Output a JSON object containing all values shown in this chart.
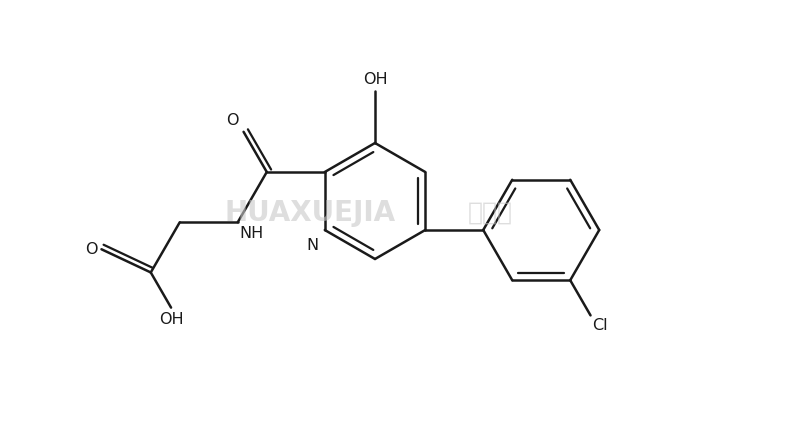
{
  "bg_color": "#ffffff",
  "line_color": "#1a1a1a",
  "line_width": 1.8,
  "font_size": 11.5,
  "watermark1": "HUAXUEJIA",
  "watermark2": "化学加",
  "figsize": [
    8.0,
    4.26
  ],
  "dpi": 100,
  "xlim": [
    0,
    800
  ],
  "ylim": [
    0,
    426
  ]
}
